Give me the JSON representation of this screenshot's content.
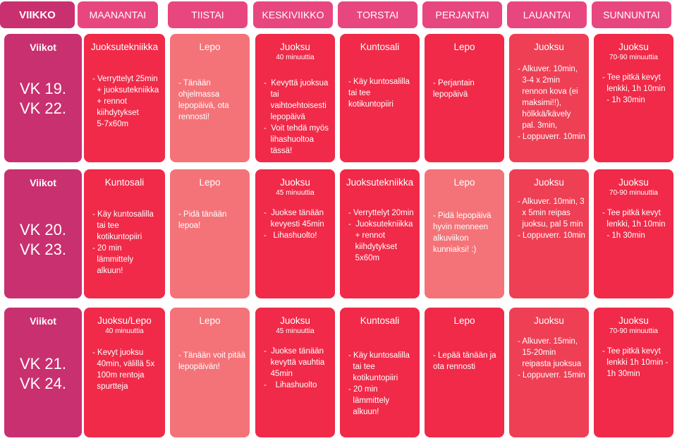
{
  "header": {
    "week_label": "VIIKKO",
    "days": [
      "MAANANTAI",
      "TIISTAI",
      "KESKIVIIKKO",
      "TORSTAI",
      "PERJANTAI",
      "LAUANTAI",
      "SUNNUNTAI"
    ]
  },
  "rows": [
    {
      "week_title": "Viikot",
      "weeks": [
        "VK 19.",
        "VK 22."
      ],
      "cells": [
        {
          "title": "Juoksutekniikka",
          "sub": "",
          "lines": [
            "- Verryttelyt 25min",
            "  + juoksutekniikka",
            "  + rennot",
            "  kiihdytykset",
            "  5-7x60m"
          ]
        },
        {
          "title": "Lepo",
          "sub": "",
          "lines": [
            "- Tänään",
            "ohjelmassa",
            "lepopäivä, ota",
            "rennosti!"
          ]
        },
        {
          "title": "Juoksu",
          "sub": "40 minuuttia",
          "lines": [
            "-  Kevyttä juoksua",
            "   tai",
            "   vaihtoehtoisesti",
            "   lepopäivä",
            "-  Voit tehdä myös",
            "   lihashuoltoa",
            "   tässä!"
          ]
        },
        {
          "title": "Kuntosali",
          "sub": "",
          "lines": [
            "- Käy kuntosalilla",
            "tai tee",
            "kotikuntopiiri"
          ]
        },
        {
          "title": "Lepo",
          "sub": "",
          "lines": [
            "- Perjantain",
            "lepopäivä"
          ]
        },
        {
          "title": "Juoksu",
          "sub": "",
          "lines": [
            "- Alkuver. 10min,",
            "  3-4 x 2min",
            "  rennon kova (ei",
            "  maksimi!!),",
            "  hölkkä/kävely",
            "  pal. 3min,",
            "- Loppuverr. 10min"
          ]
        },
        {
          "title": "Juoksu",
          "sub": "70-90 minuuttia",
          "lines": [
            "- Tee pitkä kevyt",
            "  lenkki, 1h 10min",
            "  - 1h 30min"
          ]
        }
      ]
    },
    {
      "week_title": "Viikot",
      "weeks": [
        "VK 20.",
        "VK 23."
      ],
      "cells": [
        {
          "title": "Kuntosali",
          "sub": "",
          "lines": [
            "- Käy kuntosalilla",
            "  tai tee",
            "  kotikuntopiiri",
            "- 20 min",
            "  lämmittely",
            "  alkuun!"
          ]
        },
        {
          "title": "Lepo",
          "sub": "",
          "lines": [
            "- Pidä tänään",
            "lepoa!"
          ]
        },
        {
          "title": "Juoksu",
          "sub": "45 minuuttia",
          "lines": [
            "-  Juokse tänään",
            "   kevyesti 45min",
            "-   Lihashuolto!"
          ]
        },
        {
          "title": "Juoksutekniikka",
          "sub": "",
          "lines": [
            "- Verryttelyt 20min",
            "-  Juoksutekniikka",
            "   + rennot",
            "   kiihdytykset",
            "   5x60m"
          ]
        },
        {
          "title": "Lepo",
          "sub": "",
          "lines": [
            "- Pidä lepopäivä",
            "hyvin menneen",
            "alkuviikon",
            "kunniaksi! :)"
          ]
        },
        {
          "title": "Juoksu",
          "sub": "",
          "lines": [
            "- Alkuver. 10min, 3",
            "  x 5min reipas",
            "  juoksu, pal 5 min",
            "- Loppuverr. 10min"
          ]
        },
        {
          "title": "Juoksu",
          "sub": "70-90 minuuttia",
          "lines": [
            "- Tee pitkä kevyt",
            "  lenkki, 1h 10min",
            "  - 1h 30min"
          ]
        }
      ]
    },
    {
      "week_title": "Viikot",
      "weeks": [
        "VK 21.",
        "VK 24."
      ],
      "cells": [
        {
          "title": "Juoksu/Lepo",
          "sub": "40 minuuttia",
          "lines": [
            "- Kevyt juoksu",
            "  40min, välillä 5x",
            "  100m rentoja",
            "  spurtteja"
          ]
        },
        {
          "title": "Lepo",
          "sub": "",
          "lines": [
            "- Tänään voit pitää",
            "lepopäivän!"
          ]
        },
        {
          "title": "Juoksu",
          "sub": "45 minuuttia",
          "lines": [
            "-  Juokse tänään",
            "   kevyttä vauhtia",
            "   45min",
            "-    Lihashuolto"
          ]
        },
        {
          "title": "Kuntosali",
          "sub": "",
          "lines": [
            "- Käy kuntosalilla",
            "  tai tee",
            "  kotikuntopiiri",
            "- 20 min",
            "  lämmittely",
            "  alkuun!"
          ]
        },
        {
          "title": "Lepo",
          "sub": "",
          "lines": [
            "- Lepää tänään ja",
            "ota rennosti"
          ]
        },
        {
          "title": "Juoksu",
          "sub": "",
          "lines": [
            "- Alkuver. 15min,",
            "  15-20min",
            "  reipasta juoksua",
            "- Loppuverr. 15min"
          ]
        },
        {
          "title": "Juoksu",
          "sub": "70-90 minuuttia",
          "lines": [
            "- Tee pitkä kevyt",
            "  lenkki 1h 10min -",
            "  1h 30min"
          ]
        }
      ]
    }
  ],
  "colors": {
    "week": "#c9306f",
    "header_day": "#e8467f",
    "red": "#f02a48",
    "pink": "#f47378",
    "mid": "#ee3f55"
  }
}
